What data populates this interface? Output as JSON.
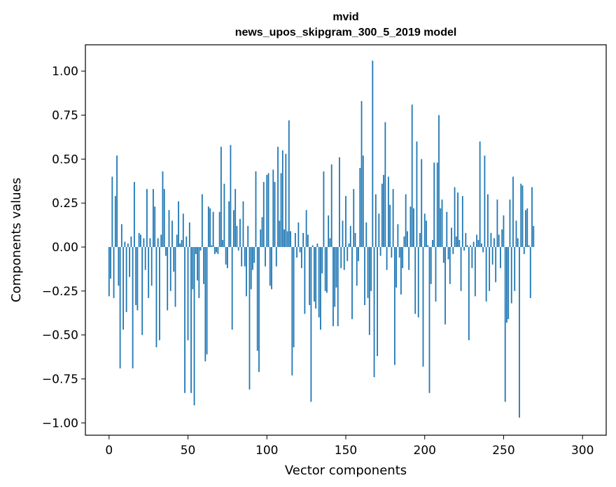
{
  "chart_data": {
    "type": "bar",
    "title": "mvid",
    "subtitle": "news_upos_skipgram_300_5_2019 model",
    "xlabel": "Vector components",
    "ylabel": "Components values",
    "xlim": [
      -15,
      315
    ],
    "ylim": [
      -1.07,
      1.15
    ],
    "xticks": [
      0,
      50,
      100,
      150,
      200,
      250,
      300
    ],
    "xtick_labels": [
      "0",
      "50",
      "100",
      "150",
      "200",
      "250",
      "300"
    ],
    "yticks": [
      -1.0,
      -0.75,
      -0.5,
      -0.25,
      0.0,
      0.25,
      0.5,
      0.75,
      1.0
    ],
    "ytick_labels": [
      "−1.00",
      "−0.75",
      "−0.50",
      "−0.25",
      "0.00",
      "0.25",
      "0.50",
      "0.75",
      "1.00"
    ],
    "grid": false,
    "bar_color": "#1f77b4",
    "values": [
      -0.28,
      -0.18,
      0.4,
      -0.29,
      0.29,
      0.52,
      -0.22,
      -0.69,
      0.13,
      -0.47,
      0.03,
      -0.37,
      0.02,
      -0.17,
      0.06,
      -0.69,
      0.37,
      -0.33,
      -0.36,
      0.08,
      0.07,
      -0.5,
      0.05,
      -0.13,
      0.33,
      -0.29,
      0.05,
      -0.22,
      0.33,
      0.23,
      -0.57,
      0.05,
      -0.53,
      0.07,
      0.43,
      0.33,
      -0.05,
      -0.36,
      0.21,
      -0.25,
      0.15,
      -0.14,
      -0.34,
      0.07,
      0.26,
      0.02,
      0.04,
      0.19,
      -0.83,
      0.06,
      -0.53,
      0.14,
      -0.83,
      -0.24,
      -0.9,
      -0.04,
      -0.19,
      -0.29,
      -0.02,
      0.3,
      -0.21,
      -0.65,
      -0.61,
      0.23,
      0.22,
      0.01,
      0.2,
      -0.04,
      -0.03,
      -0.04,
      0.2,
      0.57,
      0.04,
      0.36,
      -0.1,
      -0.12,
      0.26,
      0.58,
      -0.47,
      0.21,
      0.33,
      0.12,
      -0.02,
      0.16,
      -0.11,
      0.26,
      -0.11,
      -0.28,
      0.12,
      -0.81,
      -0.24,
      -0.13,
      -0.09,
      0.43,
      -0.59,
      -0.71,
      0.1,
      0.17,
      0.37,
      -0.11,
      0.41,
      0.42,
      -0.22,
      -0.24,
      0.44,
      0.37,
      -0.11,
      0.57,
      0.15,
      0.42,
      0.55,
      0.1,
      0.53,
      0.09,
      0.72,
      0.09,
      -0.73,
      -0.57,
      0.08,
      -0.06,
      0.14,
      -0.03,
      -0.12,
      0.08,
      -0.38,
      0.21,
      0.07,
      -0.33,
      -0.88,
      0.01,
      -0.31,
      -0.35,
      0.02,
      -0.4,
      -0.47,
      -0.15,
      0.43,
      -0.25,
      -0.26,
      0.18,
      0.05,
      0.47,
      -0.45,
      -0.34,
      -0.23,
      -0.45,
      0.51,
      -0.12,
      0.15,
      -0.13,
      0.29,
      -0.08,
      0.02,
      0.12,
      -0.41,
      0.33,
      0.08,
      -0.22,
      -0.08,
      0.45,
      0.83,
      0.52,
      -0.33,
      0.14,
      -0.29,
      -0.5,
      -0.25,
      1.06,
      -0.74,
      0.3,
      -0.62,
      0.19,
      -0.05,
      0.36,
      0.41,
      0.71,
      -0.13,
      0.4,
      0.24,
      -0.06,
      0.33,
      -0.67,
      -0.23,
      0.13,
      -0.06,
      -0.27,
      -0.12,
      0.06,
      0.3,
      0.09,
      -0.13,
      0.23,
      0.81,
      0.22,
      -0.38,
      0.6,
      -0.4,
      0.08,
      0.5,
      -0.68,
      0.19,
      0.15,
      0.01,
      -0.83,
      -0.21,
      0.04,
      0.48,
      -0.31,
      0.48,
      0.75,
      0.22,
      0.27,
      -0.09,
      -0.44,
      0.2,
      -0.07,
      -0.21,
      0.11,
      -0.04,
      0.34,
      0.06,
      0.31,
      0.04,
      -0.25,
      0.29,
      -0.02,
      0.08,
      0.01,
      -0.53,
      0.01,
      -0.12,
      0.03,
      -0.28,
      0.07,
      0.04,
      0.6,
      0.02,
      -0.03,
      0.52,
      -0.31,
      0.3,
      -0.25,
      0.08,
      -0.1,
      0.05,
      -0.2,
      0.27,
      0.07,
      -0.12,
      0.1,
      0.18,
      -0.88,
      -0.43,
      -0.41,
      0.27,
      -0.32,
      0.4,
      -0.25,
      0.15,
      0.05,
      -0.97,
      0.36,
      0.35,
      -0.04,
      0.21,
      0.22,
      0.01,
      -0.29,
      0.34,
      0.12
    ]
  }
}
